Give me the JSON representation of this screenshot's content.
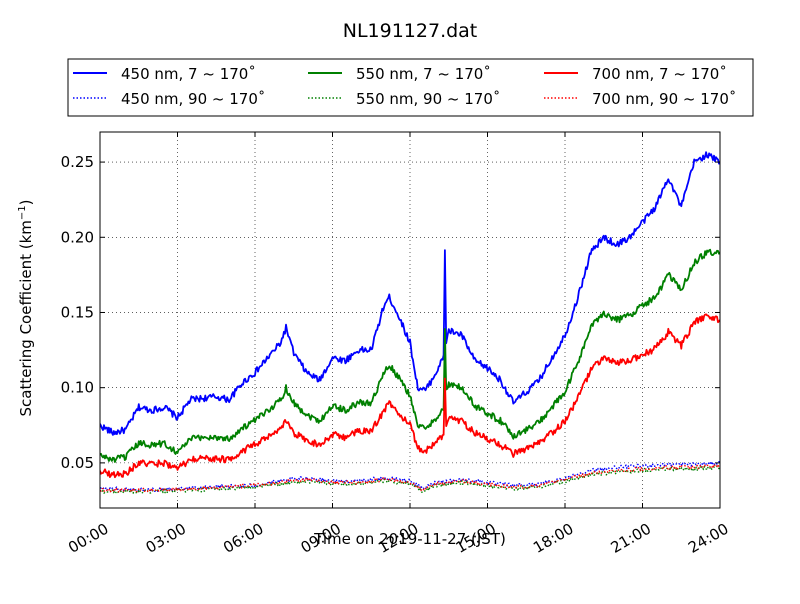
{
  "chart_data": {
    "type": "line",
    "title": "NL191127.dat",
    "xlabel": "Time on 2019-11-27 (JST)",
    "ylabel": "Scattering Coefficient (km",
    "ylabel_sup": "−1",
    "ylabel_close": ")",
    "x_unit": "hours",
    "xlim": [
      0,
      24
    ],
    "ylim": [
      0.02,
      0.27
    ],
    "x_ticks": [
      0,
      3,
      6,
      9,
      12,
      15,
      18,
      21,
      24
    ],
    "x_tick_labels": [
      "00:00",
      "03:00",
      "06:00",
      "09:00",
      "12:00",
      "15:00",
      "18:00",
      "21:00",
      "24:00"
    ],
    "y_ticks": [
      0.05,
      0.1,
      0.15,
      0.2,
      0.25
    ],
    "y_tick_labels": [
      "0.05",
      "0.10",
      "0.15",
      "0.20",
      "0.25"
    ],
    "grid": true,
    "legend_placement": "above-plot",
    "series": [
      {
        "name": "450 nm, 7 ~ 170˚",
        "color": "#0000ff",
        "style": "solid",
        "x": [
          0,
          0.5,
          1,
          1.5,
          2,
          2.5,
          3,
          3.5,
          4,
          4.5,
          5,
          5.5,
          6,
          6.5,
          7,
          7.2,
          7.5,
          8,
          8.5,
          9,
          9.5,
          10,
          10.5,
          11,
          11.2,
          11.5,
          12,
          12.3,
          12.6,
          13,
          13.3,
          13.35,
          13.4,
          13.5,
          14,
          14.5,
          15,
          15.5,
          16,
          16.5,
          17,
          17.5,
          18,
          18.5,
          19,
          19.5,
          20,
          20.5,
          21,
          21.5,
          22,
          22.5,
          23,
          23.5,
          24
        ],
        "y": [
          0.075,
          0.07,
          0.072,
          0.087,
          0.085,
          0.087,
          0.08,
          0.092,
          0.093,
          0.094,
          0.092,
          0.103,
          0.11,
          0.12,
          0.13,
          0.14,
          0.123,
          0.11,
          0.105,
          0.12,
          0.118,
          0.125,
          0.125,
          0.155,
          0.16,
          0.15,
          0.13,
          0.1,
          0.098,
          0.11,
          0.12,
          0.193,
          0.13,
          0.138,
          0.135,
          0.118,
          0.113,
          0.105,
          0.09,
          0.097,
          0.105,
          0.12,
          0.135,
          0.16,
          0.19,
          0.2,
          0.195,
          0.2,
          0.21,
          0.22,
          0.24,
          0.22,
          0.25,
          0.255,
          0.25
        ]
      },
      {
        "name": "450 nm, 90 ~ 170˚",
        "color": "#0000ff",
        "style": "dotted",
        "x": [
          0,
          2,
          4,
          6,
          7,
          8,
          9,
          10,
          11,
          12,
          12.5,
          13,
          14,
          15,
          16,
          17,
          18,
          19,
          20,
          21,
          22,
          23,
          24
        ],
        "y": [
          0.033,
          0.032,
          0.034,
          0.035,
          0.038,
          0.04,
          0.038,
          0.038,
          0.04,
          0.038,
          0.033,
          0.037,
          0.039,
          0.037,
          0.035,
          0.036,
          0.04,
          0.045,
          0.047,
          0.048,
          0.049,
          0.049,
          0.05
        ]
      },
      {
        "name": "550 nm, 7 ~ 170˚",
        "color": "#008000",
        "style": "solid",
        "x": [
          0,
          0.5,
          1,
          1.5,
          2,
          2.5,
          3,
          3.5,
          4,
          4.5,
          5,
          5.5,
          6,
          6.5,
          7,
          7.2,
          7.5,
          8,
          8.5,
          9,
          9.5,
          10,
          10.5,
          11,
          11.2,
          11.5,
          12,
          12.3,
          12.6,
          13,
          13.3,
          13.35,
          13.4,
          13.5,
          14,
          14.5,
          15,
          15.5,
          16,
          16.5,
          17,
          17.5,
          18,
          18.5,
          19,
          19.5,
          20,
          20.5,
          21,
          21.5,
          22,
          22.5,
          23,
          23.5,
          24
        ],
        "y": [
          0.055,
          0.052,
          0.054,
          0.063,
          0.062,
          0.063,
          0.057,
          0.066,
          0.067,
          0.067,
          0.066,
          0.073,
          0.078,
          0.085,
          0.092,
          0.1,
          0.09,
          0.082,
          0.078,
          0.088,
          0.085,
          0.09,
          0.09,
          0.11,
          0.115,
          0.108,
          0.095,
          0.075,
          0.072,
          0.08,
          0.086,
          0.138,
          0.097,
          0.102,
          0.1,
          0.088,
          0.083,
          0.078,
          0.068,
          0.072,
          0.077,
          0.087,
          0.097,
          0.117,
          0.14,
          0.15,
          0.145,
          0.148,
          0.155,
          0.16,
          0.175,
          0.165,
          0.183,
          0.19,
          0.19
        ]
      },
      {
        "name": "550 nm, 90 ~ 170˚",
        "color": "#008000",
        "style": "dotted",
        "x": [
          0,
          2,
          4,
          6,
          7,
          8,
          9,
          10,
          11,
          12,
          12.5,
          13,
          14,
          15,
          16,
          17,
          18,
          19,
          20,
          21,
          22,
          23,
          24
        ],
        "y": [
          0.031,
          0.031,
          0.032,
          0.034,
          0.036,
          0.038,
          0.036,
          0.036,
          0.038,
          0.036,
          0.031,
          0.035,
          0.037,
          0.035,
          0.033,
          0.034,
          0.038,
          0.042,
          0.044,
          0.045,
          0.046,
          0.046,
          0.047
        ]
      },
      {
        "name": "700 nm, 7 ~ 170˚",
        "color": "#ff0000",
        "style": "solid",
        "x": [
          0,
          0.5,
          1,
          1.5,
          2,
          2.5,
          3,
          3.5,
          4,
          4.5,
          5,
          5.5,
          6,
          6.5,
          7,
          7.2,
          7.5,
          8,
          8.5,
          9,
          9.5,
          10,
          10.5,
          11,
          11.2,
          11.5,
          12,
          12.3,
          12.6,
          13,
          13.3,
          13.35,
          13.4,
          13.5,
          14,
          14.5,
          15,
          15.5,
          16,
          16.5,
          17,
          17.5,
          18,
          18.5,
          19,
          19.5,
          20,
          20.5,
          21,
          21.5,
          22,
          22.5,
          23,
          23.5,
          24
        ],
        "y": [
          0.045,
          0.042,
          0.043,
          0.05,
          0.049,
          0.05,
          0.046,
          0.052,
          0.053,
          0.053,
          0.052,
          0.058,
          0.062,
          0.067,
          0.072,
          0.078,
          0.07,
          0.065,
          0.062,
          0.069,
          0.067,
          0.071,
          0.071,
          0.085,
          0.09,
          0.084,
          0.075,
          0.06,
          0.058,
          0.064,
          0.068,
          0.106,
          0.076,
          0.08,
          0.078,
          0.07,
          0.066,
          0.062,
          0.056,
          0.059,
          0.063,
          0.07,
          0.078,
          0.093,
          0.112,
          0.12,
          0.116,
          0.118,
          0.122,
          0.126,
          0.137,
          0.128,
          0.143,
          0.148,
          0.145
        ]
      },
      {
        "name": "700 nm, 90 ~ 170˚",
        "color": "#ff0000",
        "style": "dotted",
        "x": [
          0,
          2,
          4,
          6,
          7,
          8,
          9,
          10,
          11,
          12,
          12.5,
          13,
          14,
          15,
          16,
          17,
          18,
          19,
          20,
          21,
          22,
          23,
          24
        ],
        "y": [
          0.032,
          0.032,
          0.033,
          0.035,
          0.037,
          0.039,
          0.037,
          0.037,
          0.039,
          0.037,
          0.032,
          0.036,
          0.038,
          0.036,
          0.034,
          0.035,
          0.039,
          0.043,
          0.045,
          0.046,
          0.047,
          0.047,
          0.048
        ]
      }
    ]
  }
}
